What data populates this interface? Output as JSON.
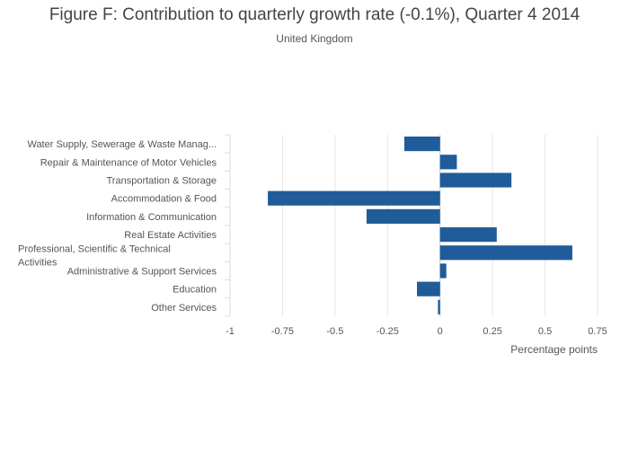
{
  "chart_data": {
    "type": "bar",
    "orientation": "horizontal",
    "title": "Figure F: Contribution to quarterly growth rate (-0.1%), Quarter 4 2014",
    "subtitle": "United Kingdom",
    "xlabel": "Percentage points",
    "ylabel": "",
    "xlim": [
      -1,
      0.75
    ],
    "xticks": [
      -1,
      -0.75,
      -0.5,
      -0.25,
      0,
      0.25,
      0.5,
      0.75
    ],
    "xtick_labels": [
      "-1",
      "-0.75",
      "-0.5",
      "-0.25",
      "0",
      "0.25",
      "0.5",
      "0.75"
    ],
    "grid": true,
    "bar_color": "#1f5c99",
    "categories": [
      [
        "Water Supply, Sewerage & Waste Manag..."
      ],
      [
        "Repair & Maintenance of Motor Vehicles"
      ],
      [
        "Transportation & Storage"
      ],
      [
        "Accommodation & Food"
      ],
      [
        "Information & Communication"
      ],
      [
        "Real Estate Activities"
      ],
      [
        "Professional, Scientific & Technical",
        "Activities"
      ],
      [
        "Administrative & Support Services"
      ],
      [
        "Education"
      ],
      [
        "Other Services"
      ]
    ],
    "values": [
      -0.17,
      0.08,
      0.34,
      -0.82,
      -0.35,
      0.27,
      0.63,
      0.03,
      -0.11,
      -0.01
    ]
  }
}
